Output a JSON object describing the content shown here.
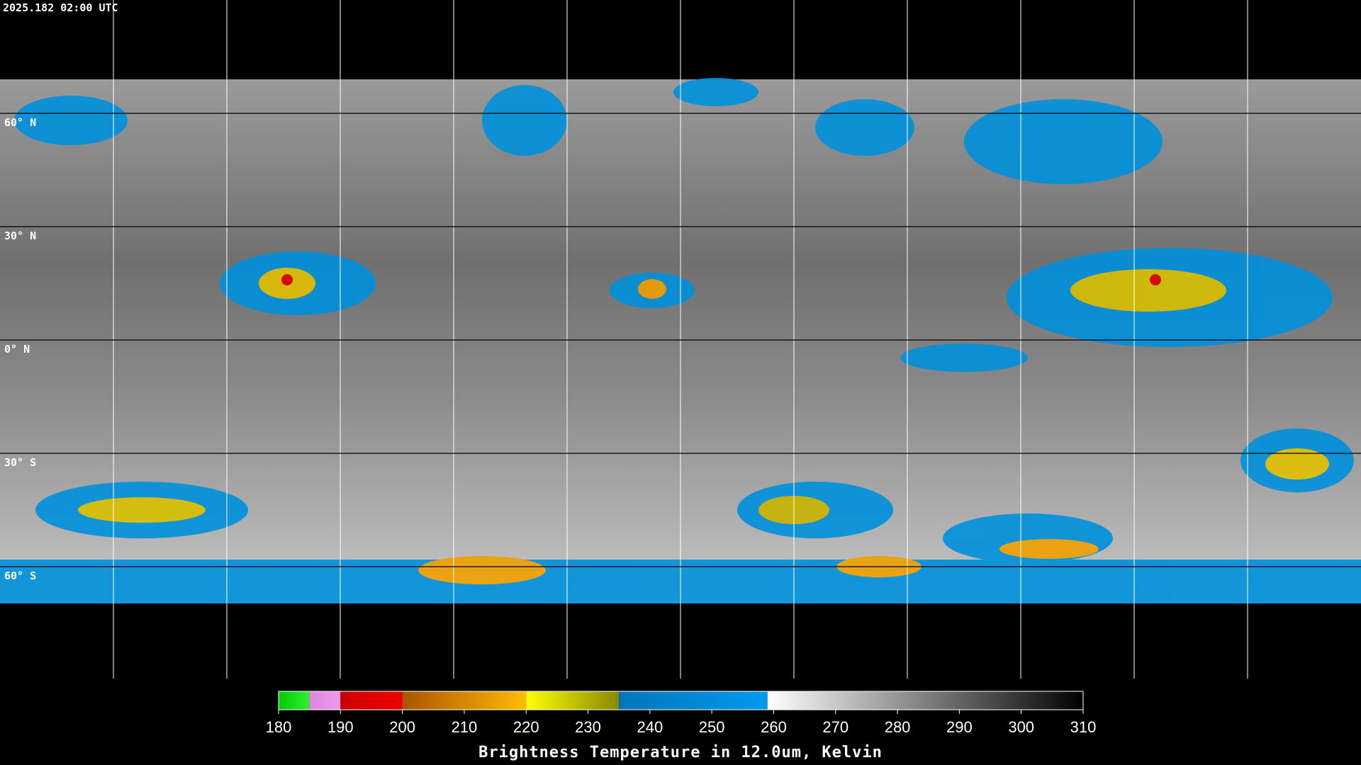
{
  "header": {
    "title": "2025.182 02:00 UTC"
  },
  "map": {
    "latitude_labels": [
      "60° N",
      "30° N",
      "0° N",
      "30° S",
      "60° S"
    ]
  },
  "colorbar": {
    "label": "Brightness Temperature in 12.0um, Kelvin",
    "lim": [
      180,
      310
    ],
    "ticks": [
      180,
      190,
      200,
      210,
      220,
      230,
      240,
      250,
      260,
      270,
      280,
      290,
      300,
      310
    ],
    "segments": [
      {
        "from": 180,
        "to": 185,
        "colors": [
          "#00cc00",
          "#33ee33"
        ]
      },
      {
        "from": 185,
        "to": 190,
        "colors": [
          "#dd88dd",
          "#ee99ee"
        ]
      },
      {
        "from": 190,
        "to": 200,
        "colors": [
          "#cc0000",
          "#ee0000"
        ]
      },
      {
        "from": 200,
        "to": 220,
        "colors": [
          "#aa5500",
          "#ffbb00"
        ]
      },
      {
        "from": 220,
        "to": 235,
        "colors": [
          "#ffff00",
          "#888800"
        ]
      },
      {
        "from": 235,
        "to": 259,
        "colors": [
          "#0077bb",
          "#0099ee"
        ]
      },
      {
        "from": 259,
        "to": 310,
        "colors": [
          "#ffffff",
          "#000000"
        ]
      }
    ]
  }
}
